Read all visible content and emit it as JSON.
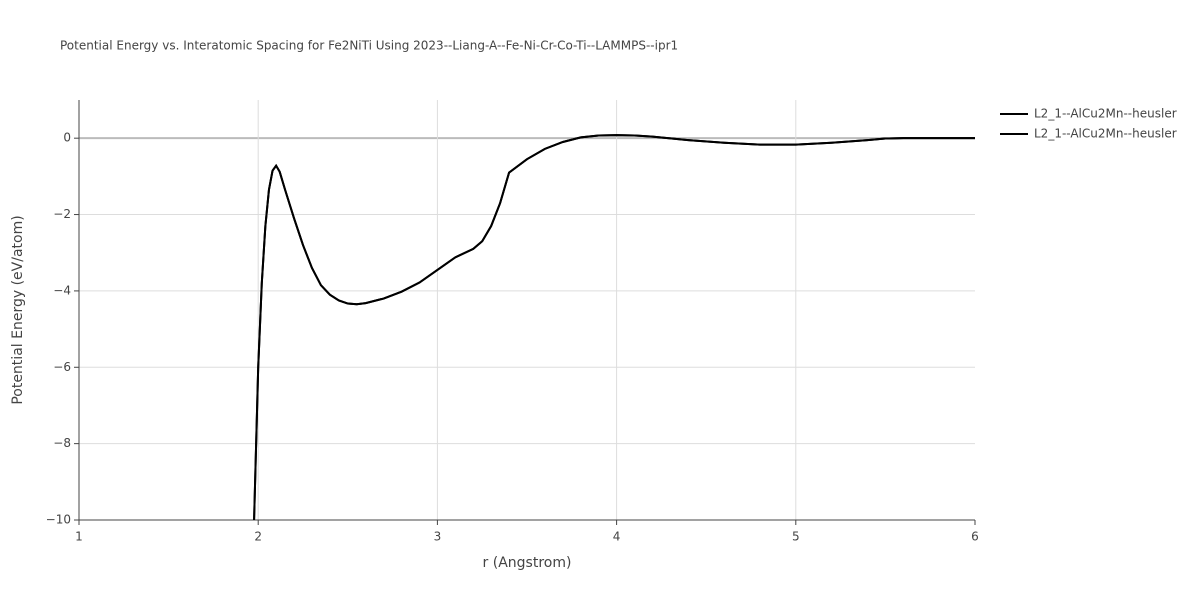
{
  "chart_data": {
    "type": "line",
    "title": "Potential Energy vs. Interatomic Spacing for Fe2NiTi Using 2023--Liang-A--Fe-Ni-Cr-Co-Ti--LAMMPS--ipr1",
    "xlabel": "r (Angstrom)",
    "ylabel": "Potential Energy (eV/atom)",
    "x": [
      1.977,
      2.0,
      2.02,
      2.04,
      2.06,
      2.08,
      2.1,
      2.12,
      2.15,
      2.2,
      2.25,
      2.3,
      2.35,
      2.4,
      2.45,
      2.5,
      2.55,
      2.6,
      2.7,
      2.8,
      2.9,
      3.0,
      3.1,
      3.2,
      3.25,
      3.3,
      3.35,
      3.4,
      3.5,
      3.6,
      3.7,
      3.8,
      3.9,
      4.0,
      4.1,
      4.2,
      4.4,
      4.6,
      4.8,
      5.0,
      5.2,
      5.4,
      5.5,
      5.6,
      6.0
    ],
    "series": [
      {
        "name": "L2_1--AlCu2Mn--heusler",
        "color": "#000000",
        "values": [
          -10,
          -6.0,
          -3.8,
          -2.3,
          -1.35,
          -0.85,
          -0.72,
          -0.88,
          -1.35,
          -2.1,
          -2.8,
          -3.4,
          -3.85,
          -4.1,
          -4.25,
          -4.33,
          -4.35,
          -4.32,
          -4.2,
          -4.02,
          -3.78,
          -3.45,
          -3.12,
          -2.9,
          -2.7,
          -2.3,
          -1.7,
          -0.9,
          -0.55,
          -0.28,
          -0.1,
          0.02,
          0.07,
          0.08,
          0.07,
          0.04,
          -0.05,
          -0.12,
          -0.17,
          -0.17,
          -0.12,
          -0.05,
          -0.01,
          0,
          0
        ]
      },
      {
        "name": "L2_1--AlCu2Mn--heusler",
        "color": "#000000",
        "values": [
          -10,
          -6.0,
          -3.8,
          -2.3,
          -1.35,
          -0.85,
          -0.72,
          -0.88,
          -1.35,
          -2.1,
          -2.8,
          -3.4,
          -3.85,
          -4.1,
          -4.25,
          -4.33,
          -4.35,
          -4.32,
          -4.2,
          -4.02,
          -3.78,
          -3.45,
          -3.12,
          -2.9,
          -2.7,
          -2.3,
          -1.7,
          -0.9,
          -0.55,
          -0.28,
          -0.1,
          0.02,
          0.07,
          0.08,
          0.07,
          0.04,
          -0.05,
          -0.12,
          -0.17,
          -0.17,
          -0.12,
          -0.05,
          -0.01,
          0,
          0
        ]
      }
    ],
    "xlim": [
      1,
      6
    ],
    "xticks": [
      1,
      2,
      3,
      4,
      5,
      6
    ],
    "ylim": [
      -10,
      1
    ],
    "yticks": [
      {
        "value": -10,
        "label": "−10"
      },
      {
        "value": -8,
        "label": "−8"
      },
      {
        "value": -6,
        "label": "−6"
      },
      {
        "value": -4,
        "label": "−4"
      },
      {
        "value": -2,
        "label": "−2"
      },
      0
    ],
    "grid": true,
    "legend": "outside-right"
  }
}
